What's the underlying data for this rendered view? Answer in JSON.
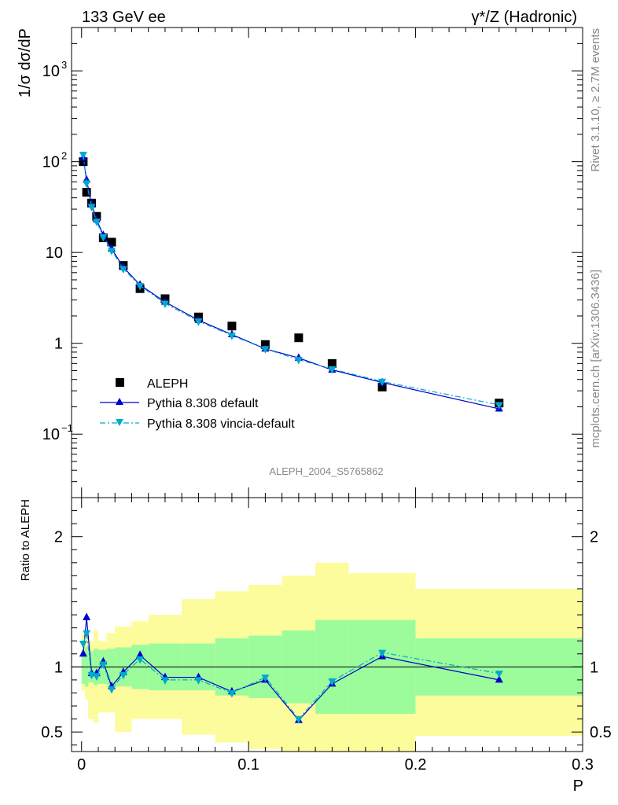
{
  "header": {
    "left": "133 GeV ee",
    "right": "γ*/Z (Hadronic)"
  },
  "side_text": {
    "rivet": "Rivet 3.1.10, ≥ 2.7M events",
    "mcplots": "mcplots.cern.ch [arXiv:1306.3436]"
  },
  "analysis_id": "ALEPH_2004_S5765862",
  "chart_data": [
    {
      "type": "scatter",
      "panel": "main",
      "ylabel": "1/σ  dσ/dP",
      "xlabel": "P",
      "xlim": [
        -0.006,
        0.3
      ],
      "ylim": [
        0.02,
        3000
      ],
      "yscale": "log",
      "yticks": [
        {
          "value": 0.1,
          "label": "10",
          "exp": "−1"
        },
        {
          "value": 1,
          "label": "1",
          "exp": ""
        },
        {
          "value": 10,
          "label": "10",
          "exp": ""
        },
        {
          "value": 100,
          "label": "10",
          "exp": "2"
        },
        {
          "value": 1000,
          "label": "10",
          "exp": "3"
        }
      ],
      "legend_position": "bottom-left",
      "series": [
        {
          "name": "ALEPH",
          "marker": "square",
          "color": "#000000",
          "x": [
            0.001,
            0.003,
            0.006,
            0.009,
            0.013,
            0.018,
            0.025,
            0.035,
            0.05,
            0.07,
            0.09,
            0.11,
            0.13,
            0.15,
            0.18,
            0.25
          ],
          "y": [
            100,
            46,
            35,
            25,
            14.5,
            13,
            7.2,
            4.0,
            3.1,
            1.95,
            1.55,
            0.97,
            1.15,
            0.6,
            0.33,
            0.22
          ]
        },
        {
          "name": "Pythia 8.308 default",
          "marker": "triangle-up",
          "color": "#0000cc",
          "line": "solid",
          "x": [
            0.001,
            0.003,
            0.006,
            0.009,
            0.013,
            0.018,
            0.025,
            0.035,
            0.05,
            0.07,
            0.09,
            0.11,
            0.13,
            0.15,
            0.18,
            0.25
          ],
          "y": [
            110,
            63,
            34,
            23,
            15.5,
            11,
            6.9,
            4.4,
            2.85,
            1.8,
            1.25,
            0.87,
            0.69,
            0.51,
            0.37,
            0.19
          ]
        },
        {
          "name": "Pythia 8.308 vincia-default",
          "marker": "triangle-down",
          "color": "#00aacc",
          "line": "dashdot",
          "x": [
            0.001,
            0.003,
            0.006,
            0.009,
            0.013,
            0.018,
            0.025,
            0.035,
            0.05,
            0.07,
            0.09,
            0.11,
            0.13,
            0.15,
            0.18,
            0.25
          ],
          "y": [
            120,
            58,
            32,
            22,
            14.8,
            10.5,
            6.6,
            4.3,
            2.75,
            1.75,
            1.22,
            0.87,
            0.66,
            0.52,
            0.38,
            0.21
          ]
        }
      ]
    },
    {
      "type": "line",
      "panel": "ratio",
      "ylabel": "Ratio to ALEPH",
      "xlabel": "P",
      "xlim": [
        -0.006,
        0.3
      ],
      "ylim": [
        0.35,
        2.3
      ],
      "xticks": [
        0,
        0.1,
        0.2,
        0.3
      ],
      "xtick_labels": [
        "0",
        "0.1",
        "0.2",
        "0.3"
      ],
      "yticks": [
        0.5,
        1,
        2
      ],
      "ytick_labels": [
        "0.5",
        "1",
        "2"
      ],
      "bands": {
        "edges": [
          0,
          0.002,
          0.004,
          0.007,
          0.01,
          0.015,
          0.02,
          0.03,
          0.04,
          0.06,
          0.08,
          0.1,
          0.12,
          0.14,
          0.16,
          0.2,
          0.3
        ],
        "inner": [
          [
            0.87,
            1.13
          ],
          [
            0.85,
            1.15
          ],
          [
            0.88,
            1.12
          ],
          [
            0.86,
            1.14
          ],
          [
            0.87,
            1.13
          ],
          [
            0.86,
            1.14
          ],
          [
            0.85,
            1.15
          ],
          [
            0.83,
            1.17
          ],
          [
            0.82,
            1.18
          ],
          [
            0.82,
            1.18
          ],
          [
            0.78,
            1.22
          ],
          [
            0.76,
            1.24
          ],
          [
            0.72,
            1.28
          ],
          [
            0.64,
            1.36
          ],
          [
            0.64,
            1.36
          ],
          [
            0.78,
            1.22
          ]
        ],
        "outer": [
          [
            0.82,
            1.26
          ],
          [
            0.75,
            1.25
          ],
          [
            0.6,
            1.2
          ],
          [
            0.57,
            1.28
          ],
          [
            0.65,
            1.2
          ],
          [
            0.65,
            1.26
          ],
          [
            0.5,
            1.31
          ],
          [
            0.6,
            1.35
          ],
          [
            0.6,
            1.4
          ],
          [
            0.48,
            1.52
          ],
          [
            0.42,
            1.58
          ],
          [
            0.37,
            1.63
          ],
          [
            0.3,
            1.7
          ],
          [
            0.2,
            1.8
          ],
          [
            0.3,
            1.72
          ],
          [
            0.47,
            1.6
          ]
        ],
        "inner_color": "#9cfc9c",
        "outer_color": "#fcfc9c"
      },
      "series": [
        {
          "name": "Pythia 8.308 default",
          "color": "#0000cc",
          "marker": "triangle-up",
          "x": [
            0.001,
            0.003,
            0.006,
            0.009,
            0.013,
            0.018,
            0.025,
            0.035,
            0.05,
            0.07,
            0.09,
            0.11,
            0.13,
            0.15,
            0.18,
            0.25
          ],
          "y": [
            1.1,
            1.38,
            0.95,
            0.95,
            1.04,
            0.85,
            0.96,
            1.09,
            0.92,
            0.92,
            0.81,
            0.9,
            0.59,
            0.87,
            1.08,
            0.9
          ]
        },
        {
          "name": "Pythia 8.308 vincia-default",
          "color": "#00aacc",
          "marker": "triangle-down",
          "x": [
            0.001,
            0.003,
            0.006,
            0.009,
            0.013,
            0.018,
            0.025,
            0.035,
            0.05,
            0.07,
            0.09,
            0.11,
            0.13,
            0.15,
            0.18,
            0.25
          ],
          "y": [
            1.18,
            1.26,
            0.94,
            0.93,
            1.02,
            0.83,
            0.94,
            1.06,
            0.9,
            0.9,
            0.8,
            0.92,
            0.6,
            0.89,
            1.11,
            0.95
          ]
        }
      ]
    }
  ]
}
